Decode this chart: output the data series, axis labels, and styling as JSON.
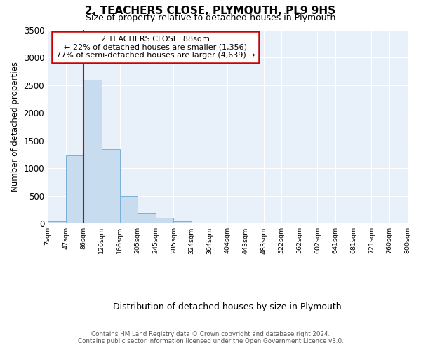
{
  "title": "2, TEACHERS CLOSE, PLYMOUTH, PL9 9HS",
  "subtitle": "Size of property relative to detached houses in Plymouth",
  "xlabel": "Distribution of detached houses by size in Plymouth",
  "ylabel": "Number of detached properties",
  "footnote": "Contains HM Land Registry data © Crown copyright and database right 2024.\nContains public sector information licensed under the Open Government Licence v3.0.",
  "bin_edges": [
    7,
    47,
    86,
    126,
    166,
    205,
    245,
    285,
    324,
    364,
    404,
    443,
    483,
    522,
    562,
    602,
    641,
    681,
    721,
    760,
    800
  ],
  "bin_labels": [
    "7sqm",
    "47sqm",
    "86sqm",
    "126sqm",
    "166sqm",
    "205sqm",
    "245sqm",
    "285sqm",
    "324sqm",
    "364sqm",
    "404sqm",
    "443sqm",
    "483sqm",
    "522sqm",
    "562sqm",
    "602sqm",
    "641sqm",
    "681sqm",
    "721sqm",
    "760sqm",
    "800sqm"
  ],
  "values": [
    40,
    1230,
    2590,
    1350,
    500,
    200,
    105,
    40,
    10,
    3,
    2,
    0,
    0,
    0,
    0,
    0,
    0,
    0,
    0,
    0
  ],
  "bar_color": "#c8dcf0",
  "bar_edge_color": "#7ab0d8",
  "marker_bin_index": 2,
  "marker_color": "#cc0000",
  "annotation_title": "2 TEACHERS CLOSE: 88sqm",
  "annotation_line1": "← 22% of detached houses are smaller (1,356)",
  "annotation_line2": "77% of semi-detached houses are larger (4,639) →",
  "annotation_box_color": "#cc0000",
  "ylim": [
    0,
    3500
  ],
  "background_color": "#ffffff",
  "plot_bg_color": "#e8f0fa",
  "grid_color": "#ffffff",
  "title_fontsize": 11,
  "subtitle_fontsize": 9
}
